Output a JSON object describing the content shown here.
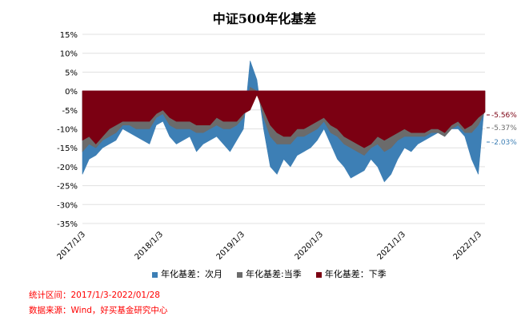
{
  "chart_data": {
    "type": "area",
    "title": "中证500年化基差",
    "xlabel": "",
    "ylabel": "",
    "ylim": [
      -35,
      15
    ],
    "yticks": [
      "15%",
      "10%",
      "5%",
      "0%",
      "-5%",
      "-10%",
      "-15%",
      "-20%",
      "-25%",
      "-30%",
      "-35%"
    ],
    "ytick_values": [
      15,
      10,
      5,
      0,
      -5,
      -10,
      -15,
      -20,
      -25,
      -30,
      -35
    ],
    "xticks": [
      "2017/1/3",
      "2018/1/3",
      "2019/1/3",
      "2020/1/3",
      "2021/1/3",
      "2022/1/3"
    ],
    "x_start": "2017-01",
    "x_end": "2022-01",
    "grid": true,
    "legend_position": "bottom",
    "series": [
      {
        "name": "年化基差：次月",
        "color": "#3d7fb5",
        "end_label": "-2.03%",
        "values": [
          -22,
          -18,
          -17,
          -15,
          -14,
          -13,
          -10,
          -11,
          -12,
          -13,
          -14,
          -9,
          -8,
          -12,
          -14,
          -13,
          -12,
          -16,
          -14,
          -13,
          -12,
          -14,
          -16,
          -13,
          -10,
          8,
          3,
          -10,
          -20,
          -22,
          -18,
          -20,
          -17,
          -16,
          -15,
          -13,
          -10,
          -14,
          -18,
          -20,
          -23,
          -22,
          -21,
          -18,
          -20,
          -24,
          -22,
          -18,
          -15,
          -16,
          -14,
          -13,
          -12,
          -11,
          -12,
          -10,
          -10,
          -12,
          -18,
          -22,
          -2.03
        ]
      },
      {
        "name": "年化基差:当季",
        "color": "#6b6b6b",
        "end_label": "-5.37%",
        "values": [
          -16,
          -14,
          -15,
          -13,
          -12,
          -11,
          -9,
          -9,
          -10,
          -10,
          -10,
          -7,
          -6,
          -9,
          -10,
          -10,
          -10,
          -11,
          -11,
          -10,
          -9,
          -10,
          -10,
          -9,
          -7,
          1,
          0,
          -7,
          -12,
          -14,
          -14,
          -14,
          -12,
          -12,
          -11,
          -10,
          -8,
          -11,
          -12,
          -14,
          -15,
          -16,
          -17,
          -15,
          -14,
          -16,
          -15,
          -13,
          -12,
          -12,
          -12,
          -12,
          -11,
          -11,
          -12,
          -10,
          -9,
          -11,
          -11,
          -9,
          -5.37
        ]
      },
      {
        "name": "年化基差：下季",
        "color": "#7b0012",
        "end_label": "-5.56%",
        "values": [
          -13,
          -12,
          -14,
          -12,
          -10,
          -9,
          -8,
          -8,
          -8,
          -8,
          -8,
          -6,
          -5,
          -7,
          -8,
          -8,
          -8,
          -9,
          -9,
          -9,
          -7,
          -8,
          -8,
          -8,
          -6,
          -5,
          -1,
          -5,
          -9,
          -11,
          -12,
          -12,
          -10,
          -10,
          -9,
          -8,
          -7,
          -9,
          -10,
          -12,
          -13,
          -14,
          -15,
          -14,
          -12,
          -13,
          -12,
          -11,
          -10,
          -11,
          -11,
          -11,
          -10,
          -10,
          -11,
          -9,
          -8,
          -10,
          -9,
          -7,
          -5.56
        ]
      }
    ]
  },
  "footer": {
    "range": "统计区间：2017/1/3-2022/01/28",
    "source": "数据来源：Wind，好买基金研究中心"
  }
}
